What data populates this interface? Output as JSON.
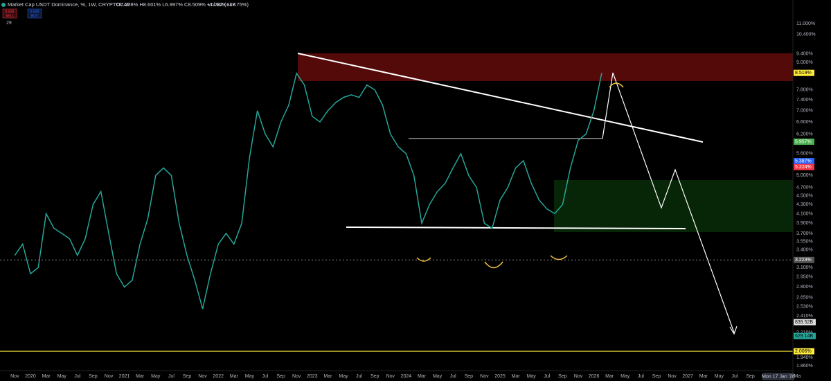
{
  "header": {
    "title": "Market Cap USDT Dominance, %, 1W, CRYPTOCAP",
    "ohlc": "O7.228% H8.601% L6.997% C8.509% +1.282 (+17.75%)",
    "volume": "Vol 629.14B",
    "sell": {
      "price": "8.509",
      "label": "SELL"
    },
    "buy": {
      "price": "8.509",
      "label": "BUY"
    },
    "indicator_count": "29"
  },
  "chart_data": {
    "type": "line",
    "color": "#26a69a",
    "log_scale": true,
    "grid": false,
    "x": [
      "2019-11",
      "2019-12",
      "2020-01",
      "2020-02",
      "2020-03",
      "2020-04",
      "2020-05",
      "2020-06",
      "2020-07",
      "2020-08",
      "2020-09",
      "2020-10",
      "2020-11",
      "2020-12",
      "2021-01",
      "2021-02",
      "2021-03",
      "2021-04",
      "2021-05",
      "2021-06",
      "2021-07",
      "2021-08",
      "2021-09",
      "2021-10",
      "2021-11",
      "2021-12",
      "2022-01",
      "2022-02",
      "2022-03",
      "2022-04",
      "2022-05",
      "2022-06",
      "2022-07",
      "2022-08",
      "2022-09",
      "2022-10",
      "2022-11",
      "2022-12",
      "2023-01",
      "2023-02",
      "2023-03",
      "2023-04",
      "2023-05",
      "2023-06",
      "2023-07",
      "2023-08",
      "2023-09",
      "2023-10",
      "2023-11",
      "2023-12",
      "2024-01",
      "2024-02",
      "2024-03",
      "2024-04",
      "2024-05",
      "2024-06",
      "2024-07",
      "2024-08",
      "2024-09",
      "2024-10",
      "2024-11",
      "2024-12",
      "2025-01",
      "2025-02",
      "2025-03",
      "2025-04",
      "2025-05",
      "2025-06",
      "2025-07",
      "2025-08",
      "2025-09",
      "2025-10",
      "2025-11",
      "2025-12",
      "2026-01",
      "2026-02"
    ],
    "values": [
      3.3,
      3.5,
      3.0,
      3.1,
      4.1,
      3.8,
      3.7,
      3.6,
      3.3,
      3.6,
      4.3,
      4.6,
      3.7,
      3.0,
      2.8,
      2.9,
      3.5,
      4.0,
      5.0,
      5.2,
      5.0,
      3.9,
      3.3,
      2.9,
      2.5,
      3.0,
      3.5,
      3.7,
      3.5,
      3.9,
      5.5,
      7.0,
      6.2,
      5.8,
      6.6,
      7.2,
      8.5,
      8.0,
      6.8,
      6.6,
      7.0,
      7.3,
      7.5,
      7.6,
      7.5,
      8.0,
      7.8,
      7.2,
      6.2,
      5.8,
      5.6,
      5.0,
      3.9,
      4.3,
      4.6,
      4.8,
      5.2,
      5.6,
      5.0,
      4.7,
      3.9,
      3.8,
      4.4,
      4.7,
      5.2,
      5.4,
      4.8,
      4.4,
      4.2,
      4.1,
      4.3,
      5.2,
      6.0,
      6.2,
      7.0,
      8.51
    ],
    "ylim": [
      1.75,
      12.0
    ],
    "yticks": [
      {
        "value": 11.0,
        "label": "11.000%"
      },
      {
        "value": 10.4,
        "label": "10.400%"
      },
      {
        "value": 9.4,
        "label": "9.400%"
      },
      {
        "value": 9.0,
        "label": "9.000%"
      },
      {
        "value": 7.8,
        "label": "7.800%"
      },
      {
        "value": 7.4,
        "label": "7.400%"
      },
      {
        "value": 7.0,
        "label": "7.000%"
      },
      {
        "value": 6.6,
        "label": "6.600%"
      },
      {
        "value": 6.2,
        "label": "6.200%"
      },
      {
        "value": 5.6,
        "label": "5.600%"
      },
      {
        "value": 5.0,
        "label": "5.000%"
      },
      {
        "value": 4.7,
        "label": "4.700%"
      },
      {
        "value": 4.5,
        "label": "4.500%"
      },
      {
        "value": 4.3,
        "label": "4.300%"
      },
      {
        "value": 4.1,
        "label": "4.100%"
      },
      {
        "value": 3.9,
        "label": "3.900%"
      },
      {
        "value": 3.7,
        "label": "3.700%"
      },
      {
        "value": 3.55,
        "label": "3.550%"
      },
      {
        "value": 3.4,
        "label": "3.400%"
      },
      {
        "value": 3.1,
        "label": "3.100%"
      },
      {
        "value": 2.95,
        "label": "2.950%"
      },
      {
        "value": 2.8,
        "label": "2.800%"
      },
      {
        "value": 2.65,
        "label": "2.650%"
      },
      {
        "value": 2.53,
        "label": "2.530%"
      },
      {
        "value": 2.41,
        "label": "2.410%"
      },
      {
        "value": 2.21,
        "label": "2.210%"
      },
      {
        "value": 1.94,
        "label": "1.940%"
      },
      {
        "value": 1.86,
        "label": "1.860%"
      }
    ],
    "xticks": [
      {
        "value": "2019-11",
        "label": "Nov"
      },
      {
        "value": "2020-01",
        "label": "2020"
      },
      {
        "value": "2020-03",
        "label": "Mar"
      },
      {
        "value": "2020-05",
        "label": "May"
      },
      {
        "value": "2020-07",
        "label": "Jul"
      },
      {
        "value": "2020-09",
        "label": "Sep"
      },
      {
        "value": "2020-11",
        "label": "Nov"
      },
      {
        "value": "2021-01",
        "label": "2021"
      },
      {
        "value": "2021-03",
        "label": "Mar"
      },
      {
        "value": "2021-05",
        "label": "May"
      },
      {
        "value": "2021-07",
        "label": "Jul"
      },
      {
        "value": "2021-09",
        "label": "Sep"
      },
      {
        "value": "2021-11",
        "label": "Nov"
      },
      {
        "value": "2022-01",
        "label": "2022"
      },
      {
        "value": "2022-03",
        "label": "Mar"
      },
      {
        "value": "2022-05",
        "label": "May"
      },
      {
        "value": "2022-07",
        "label": "Jul"
      },
      {
        "value": "2022-09",
        "label": "Sep"
      },
      {
        "value": "2022-11",
        "label": "Nov"
      },
      {
        "value": "2023-01",
        "label": "2023"
      },
      {
        "value": "2023-03",
        "label": "Mar"
      },
      {
        "value": "2023-05",
        "label": "May"
      },
      {
        "value": "2023-07",
        "label": "Jul"
      },
      {
        "value": "2023-09",
        "label": "Sep"
      },
      {
        "value": "2023-11",
        "label": "Nov"
      },
      {
        "value": "2024-01",
        "label": "2024"
      },
      {
        "value": "2024-03",
        "label": "Mar"
      },
      {
        "value": "2024-05",
        "label": "May"
      },
      {
        "value": "2024-07",
        "label": "Jul"
      },
      {
        "value": "2024-09",
        "label": "Sep"
      },
      {
        "value": "2024-11",
        "label": "Nov"
      },
      {
        "value": "2025-01",
        "label": "2025"
      },
      {
        "value": "2025-03",
        "label": "Mar"
      },
      {
        "value": "2025-05",
        "label": "May"
      },
      {
        "value": "2025-07",
        "label": "Jul"
      },
      {
        "value": "2025-09",
        "label": "Sep"
      },
      {
        "value": "2025-11",
        "label": "Nov"
      },
      {
        "value": "2026-01",
        "label": "2026"
      },
      {
        "value": "2026-03",
        "label": "Mar"
      },
      {
        "value": "2026-05",
        "label": "May"
      },
      {
        "value": "2026-07",
        "label": "Jul"
      },
      {
        "value": "2026-09",
        "label": "Sep"
      },
      {
        "value": "2026-11",
        "label": "Nov"
      },
      {
        "value": "2027-01",
        "label": "2027"
      },
      {
        "value": "2027-03",
        "label": "Mar"
      },
      {
        "value": "2027-05",
        "label": "May"
      },
      {
        "value": "2027-07",
        "label": "Jul"
      },
      {
        "value": "2027-09",
        "label": "Sep"
      },
      {
        "value": "2027-11",
        "label": "Nov"
      },
      {
        "value": "2028-03",
        "label": "Ma"
      }
    ],
    "crosshair_label": "Mon 17 Jan '28",
    "horizontal_lines": [
      {
        "value": 2.006,
        "color": "#ffeb3b"
      },
      {
        "value": 3.223,
        "color": "#777777"
      }
    ],
    "price_tags": [
      {
        "value": 8.519,
        "label": "8.519%",
        "color": "#ffeb3b"
      },
      {
        "value": 5.957,
        "label": "5.957%",
        "color": "#4caf50"
      },
      {
        "value": 5.387,
        "label": "5.387%",
        "color": "#2962ff"
      },
      {
        "value": 5.224,
        "label": "5.224%",
        "color": "#f23645"
      },
      {
        "value": 3.223,
        "label": "3.223%",
        "color": "#555555"
      },
      {
        "value": 2.006,
        "label": "2.006%",
        "color": "#ffeb3b"
      }
    ],
    "volume_tags": [
      {
        "label": "839.52B",
        "color": "#dddddd"
      },
      {
        "label": "629.14B",
        "color": "#26a69a"
      }
    ]
  }
}
